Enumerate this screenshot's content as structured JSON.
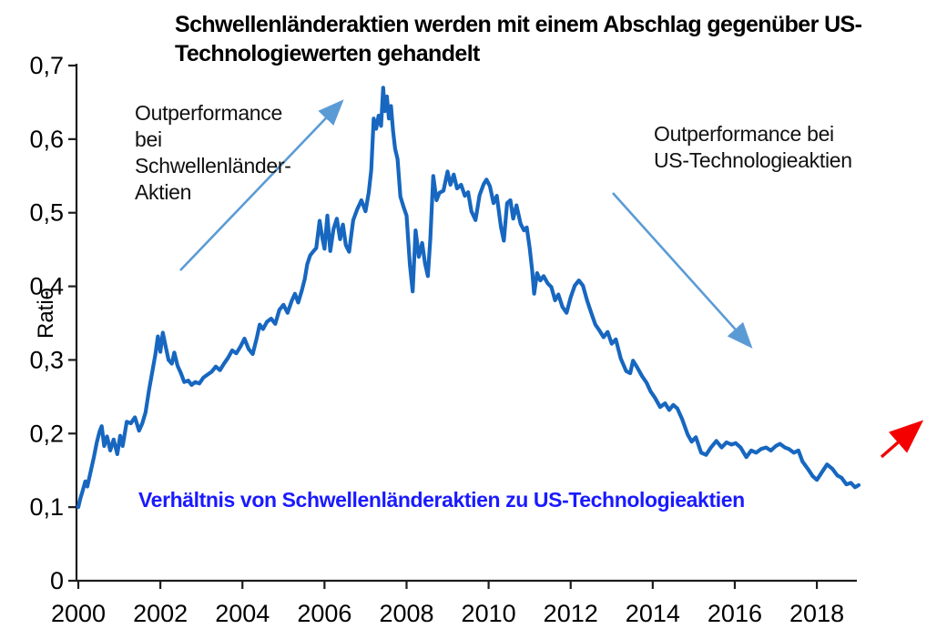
{
  "title": {
    "text": "Schwellenländeraktien werden mit einem Abschlag gegenüber US-Technologiewerten gehandelt"
  },
  "y_axis": {
    "label": "Ratio",
    "ticks": [
      {
        "v": 0.0,
        "label": "0"
      },
      {
        "v": 0.1,
        "label": "0,1"
      },
      {
        "v": 0.2,
        "label": "0,2"
      },
      {
        "v": 0.3,
        "label": "0,3"
      },
      {
        "v": 0.4,
        "label": "0,4"
      },
      {
        "v": 0.5,
        "label": "0,5"
      },
      {
        "v": 0.6,
        "label": "0,6"
      },
      {
        "v": 0.7,
        "label": "0,7"
      }
    ]
  },
  "x_axis": {
    "ticks": [
      {
        "v": 2000,
        "label": "2000"
      },
      {
        "v": 2002,
        "label": "2002"
      },
      {
        "v": 2004,
        "label": "2004"
      },
      {
        "v": 2006,
        "label": "2006"
      },
      {
        "v": 2008,
        "label": "2008"
      },
      {
        "v": 2010,
        "label": "2010"
      },
      {
        "v": 2012,
        "label": "2012"
      },
      {
        "v": 2014,
        "label": "2014"
      },
      {
        "v": 2016,
        "label": "2016"
      },
      {
        "v": 2018,
        "label": "2018"
      }
    ]
  },
  "annotations": {
    "em": {
      "text": "Outperformance\nbei\nSchwellenländer-\nAktien"
    },
    "us": {
      "text": "Outperformance bei\nUS-Technologieaktien"
    },
    "series_label": {
      "text": "Verhältnis von Schwellenländeraktien zu US-Technologieaktien"
    }
  },
  "colors": {
    "line": "#1767c0",
    "annotation_arrow": "#5b9bd5",
    "forecast_arrow": "#f50000",
    "series_label_text": "#1a1aff",
    "axis": "#1c1c1c"
  },
  "chart_data": {
    "type": "line",
    "title": "Schwellenländeraktien werden mit einem Abschlag gegenüber US-Technologiewerten gehandelt",
    "xlabel": "",
    "ylabel": "Ratio",
    "xlim": [
      2000,
      2019.2
    ],
    "ylim": [
      0,
      0.7
    ],
    "grid": false,
    "legend": "none",
    "x_tick_values": [
      2000,
      2002,
      2004,
      2006,
      2008,
      2010,
      2012,
      2014,
      2016,
      2018
    ],
    "y_tick_labels": [
      "0",
      "0,1",
      "0,2",
      "0,3",
      "0,4",
      "0,5",
      "0,6",
      "0,7"
    ],
    "series": [
      {
        "name": "Verhältnis von Schwellenländeraktien zu US-Technologieaktien",
        "points": [
          [
            2000.0,
            0.1
          ],
          [
            2000.05,
            0.112
          ],
          [
            2000.1,
            0.121
          ],
          [
            2000.17,
            0.135
          ],
          [
            2000.22,
            0.128
          ],
          [
            2000.3,
            0.148
          ],
          [
            2000.38,
            0.168
          ],
          [
            2000.45,
            0.188
          ],
          [
            2000.52,
            0.203
          ],
          [
            2000.57,
            0.21
          ],
          [
            2000.63,
            0.183
          ],
          [
            2000.7,
            0.196
          ],
          [
            2000.78,
            0.177
          ],
          [
            2000.86,
            0.192
          ],
          [
            2000.95,
            0.172
          ],
          [
            2001.02,
            0.197
          ],
          [
            2001.08,
            0.183
          ],
          [
            2001.18,
            0.216
          ],
          [
            2001.28,
            0.214
          ],
          [
            2001.38,
            0.222
          ],
          [
            2001.48,
            0.204
          ],
          [
            2001.56,
            0.214
          ],
          [
            2001.64,
            0.229
          ],
          [
            2001.72,
            0.258
          ],
          [
            2001.8,
            0.283
          ],
          [
            2001.88,
            0.308
          ],
          [
            2001.94,
            0.332
          ],
          [
            2002.0,
            0.311
          ],
          [
            2002.06,
            0.337
          ],
          [
            2002.13,
            0.318
          ],
          [
            2002.2,
            0.3
          ],
          [
            2002.28,
            0.295
          ],
          [
            2002.34,
            0.31
          ],
          [
            2002.42,
            0.292
          ],
          [
            2002.5,
            0.282
          ],
          [
            2002.58,
            0.27
          ],
          [
            2002.68,
            0.272
          ],
          [
            2002.76,
            0.266
          ],
          [
            2002.85,
            0.27
          ],
          [
            2002.95,
            0.268
          ],
          [
            2003.05,
            0.276
          ],
          [
            2003.15,
            0.28
          ],
          [
            2003.25,
            0.284
          ],
          [
            2003.35,
            0.291
          ],
          [
            2003.45,
            0.286
          ],
          [
            2003.55,
            0.295
          ],
          [
            2003.65,
            0.303
          ],
          [
            2003.75,
            0.313
          ],
          [
            2003.85,
            0.309
          ],
          [
            2003.95,
            0.318
          ],
          [
            2004.05,
            0.329
          ],
          [
            2004.15,
            0.315
          ],
          [
            2004.25,
            0.308
          ],
          [
            2004.35,
            0.33
          ],
          [
            2004.42,
            0.348
          ],
          [
            2004.5,
            0.342
          ],
          [
            2004.6,
            0.352
          ],
          [
            2004.7,
            0.356
          ],
          [
            2004.8,
            0.349
          ],
          [
            2004.9,
            0.368
          ],
          [
            2005.0,
            0.375
          ],
          [
            2005.1,
            0.364
          ],
          [
            2005.2,
            0.38
          ],
          [
            2005.28,
            0.39
          ],
          [
            2005.36,
            0.378
          ],
          [
            2005.45,
            0.395
          ],
          [
            2005.52,
            0.41
          ],
          [
            2005.58,
            0.43
          ],
          [
            2005.65,
            0.442
          ],
          [
            2005.72,
            0.447
          ],
          [
            2005.8,
            0.452
          ],
          [
            2005.88,
            0.489
          ],
          [
            2005.95,
            0.465
          ],
          [
            2006.0,
            0.451
          ],
          [
            2006.07,
            0.496
          ],
          [
            2006.14,
            0.448
          ],
          [
            2006.22,
            0.478
          ],
          [
            2006.3,
            0.492
          ],
          [
            2006.38,
            0.464
          ],
          [
            2006.45,
            0.484
          ],
          [
            2006.52,
            0.456
          ],
          [
            2006.6,
            0.447
          ],
          [
            2006.7,
            0.49
          ],
          [
            2006.8,
            0.505
          ],
          [
            2006.9,
            0.517
          ],
          [
            2007.0,
            0.502
          ],
          [
            2007.08,
            0.528
          ],
          [
            2007.14,
            0.558
          ],
          [
            2007.2,
            0.628
          ],
          [
            2007.26,
            0.614
          ],
          [
            2007.32,
            0.632
          ],
          [
            2007.38,
            0.618
          ],
          [
            2007.43,
            0.67
          ],
          [
            2007.47,
            0.638
          ],
          [
            2007.52,
            0.658
          ],
          [
            2007.57,
            0.628
          ],
          [
            2007.62,
            0.645
          ],
          [
            2007.67,
            0.612
          ],
          [
            2007.72,
            0.587
          ],
          [
            2007.78,
            0.573
          ],
          [
            2007.85,
            0.522
          ],
          [
            2007.92,
            0.509
          ],
          [
            2008.0,
            0.496
          ],
          [
            2008.08,
            0.43
          ],
          [
            2008.15,
            0.393
          ],
          [
            2008.22,
            0.476
          ],
          [
            2008.3,
            0.44
          ],
          [
            2008.38,
            0.459
          ],
          [
            2008.45,
            0.431
          ],
          [
            2008.52,
            0.414
          ],
          [
            2008.58,
            0.465
          ],
          [
            2008.65,
            0.55
          ],
          [
            2008.73,
            0.517
          ],
          [
            2008.8,
            0.527
          ],
          [
            2008.9,
            0.53
          ],
          [
            2009.0,
            0.556
          ],
          [
            2009.07,
            0.538
          ],
          [
            2009.15,
            0.552
          ],
          [
            2009.23,
            0.533
          ],
          [
            2009.33,
            0.538
          ],
          [
            2009.42,
            0.523
          ],
          [
            2009.5,
            0.528
          ],
          [
            2009.58,
            0.502
          ],
          [
            2009.68,
            0.49
          ],
          [
            2009.78,
            0.524
          ],
          [
            2009.88,
            0.539
          ],
          [
            2009.95,
            0.545
          ],
          [
            2010.03,
            0.536
          ],
          [
            2010.12,
            0.513
          ],
          [
            2010.2,
            0.523
          ],
          [
            2010.3,
            0.481
          ],
          [
            2010.37,
            0.462
          ],
          [
            2010.45,
            0.513
          ],
          [
            2010.53,
            0.517
          ],
          [
            2010.6,
            0.492
          ],
          [
            2010.68,
            0.51
          ],
          [
            2010.78,
            0.485
          ],
          [
            2010.86,
            0.476
          ],
          [
            2010.93,
            0.48
          ],
          [
            2011.0,
            0.452
          ],
          [
            2011.06,
            0.422
          ],
          [
            2011.11,
            0.39
          ],
          [
            2011.18,
            0.418
          ],
          [
            2011.26,
            0.408
          ],
          [
            2011.34,
            0.414
          ],
          [
            2011.44,
            0.404
          ],
          [
            2011.53,
            0.399
          ],
          [
            2011.62,
            0.381
          ],
          [
            2011.7,
            0.389
          ],
          [
            2011.8,
            0.372
          ],
          [
            2011.9,
            0.364
          ],
          [
            2012.0,
            0.385
          ],
          [
            2012.1,
            0.401
          ],
          [
            2012.2,
            0.408
          ],
          [
            2012.3,
            0.401
          ],
          [
            2012.4,
            0.381
          ],
          [
            2012.5,
            0.364
          ],
          [
            2012.6,
            0.348
          ],
          [
            2012.7,
            0.34
          ],
          [
            2012.8,
            0.331
          ],
          [
            2012.9,
            0.338
          ],
          [
            2013.0,
            0.322
          ],
          [
            2013.1,
            0.328
          ],
          [
            2013.22,
            0.302
          ],
          [
            2013.35,
            0.285
          ],
          [
            2013.45,
            0.282
          ],
          [
            2013.52,
            0.299
          ],
          [
            2013.62,
            0.29
          ],
          [
            2013.74,
            0.278
          ],
          [
            2013.85,
            0.269
          ],
          [
            2013.95,
            0.257
          ],
          [
            2014.05,
            0.249
          ],
          [
            2014.18,
            0.236
          ],
          [
            2014.3,
            0.241
          ],
          [
            2014.4,
            0.232
          ],
          [
            2014.5,
            0.239
          ],
          [
            2014.6,
            0.234
          ],
          [
            2014.72,
            0.219
          ],
          [
            2014.85,
            0.199
          ],
          [
            2014.95,
            0.189
          ],
          [
            2015.05,
            0.195
          ],
          [
            2015.18,
            0.174
          ],
          [
            2015.3,
            0.171
          ],
          [
            2015.42,
            0.181
          ],
          [
            2015.55,
            0.19
          ],
          [
            2015.68,
            0.181
          ],
          [
            2015.8,
            0.188
          ],
          [
            2015.92,
            0.185
          ],
          [
            2016.02,
            0.187
          ],
          [
            2016.14,
            0.181
          ],
          [
            2016.28,
            0.168
          ],
          [
            2016.4,
            0.177
          ],
          [
            2016.52,
            0.174
          ],
          [
            2016.64,
            0.179
          ],
          [
            2016.76,
            0.181
          ],
          [
            2016.88,
            0.177
          ],
          [
            2017.0,
            0.183
          ],
          [
            2017.1,
            0.186
          ],
          [
            2017.22,
            0.181
          ],
          [
            2017.32,
            0.179
          ],
          [
            2017.44,
            0.174
          ],
          [
            2017.55,
            0.177
          ],
          [
            2017.65,
            0.162
          ],
          [
            2017.78,
            0.152
          ],
          [
            2017.9,
            0.142
          ],
          [
            2018.0,
            0.137
          ],
          [
            2018.13,
            0.148
          ],
          [
            2018.25,
            0.158
          ],
          [
            2018.38,
            0.152
          ],
          [
            2018.5,
            0.143
          ],
          [
            2018.6,
            0.14
          ],
          [
            2018.72,
            0.131
          ],
          [
            2018.83,
            0.133
          ],
          [
            2018.93,
            0.127
          ],
          [
            2019.02,
            0.13
          ]
        ]
      }
    ],
    "annotations": [
      {
        "text": "Outperformance bei Schwellenländer-Aktien",
        "arrow": "up-right"
      },
      {
        "text": "Outperformance bei US-Technologieaktien",
        "arrow": "down-right"
      },
      {
        "text": "red forecast arrow bottom right",
        "arrow": "up-right"
      }
    ]
  }
}
